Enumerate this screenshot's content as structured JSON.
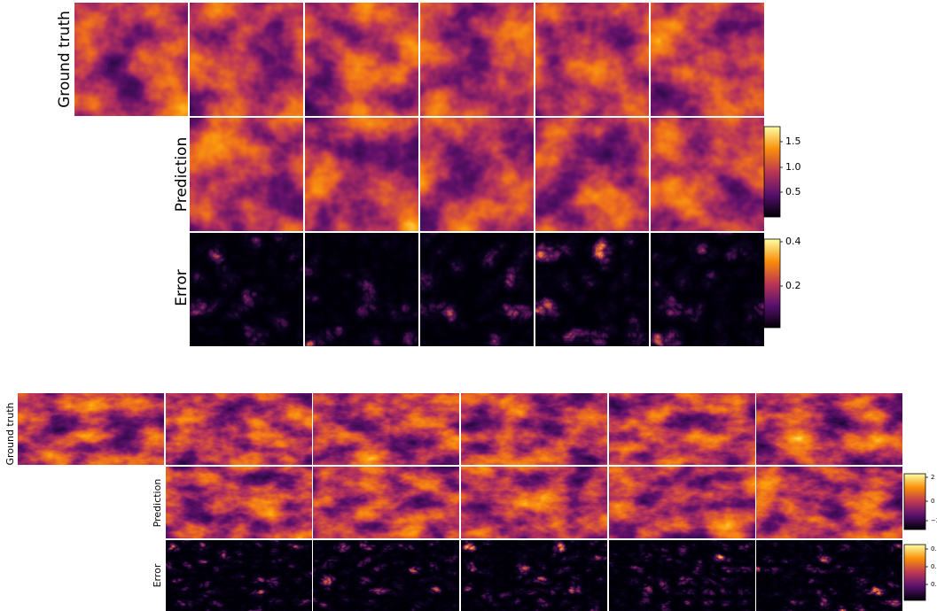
{
  "panels": [
    {
      "rows": [
        "Ground truth",
        "Prediction",
        "Error"
      ],
      "colorbars": [
        {
          "ticks": [
            "1.5",
            "1.0",
            "0.5"
          ]
        },
        {
          "ticks": [
            "0.4",
            "0.2"
          ]
        }
      ]
    },
    {
      "rows": [
        "Ground truth",
        "Prediction",
        "Error"
      ],
      "colorbars": [
        {
          "ticks": [
            "2",
            "0",
            "−2"
          ]
        },
        {
          "ticks": [
            "0.3",
            "0.2",
            "0.1"
          ]
        }
      ]
    }
  ]
}
